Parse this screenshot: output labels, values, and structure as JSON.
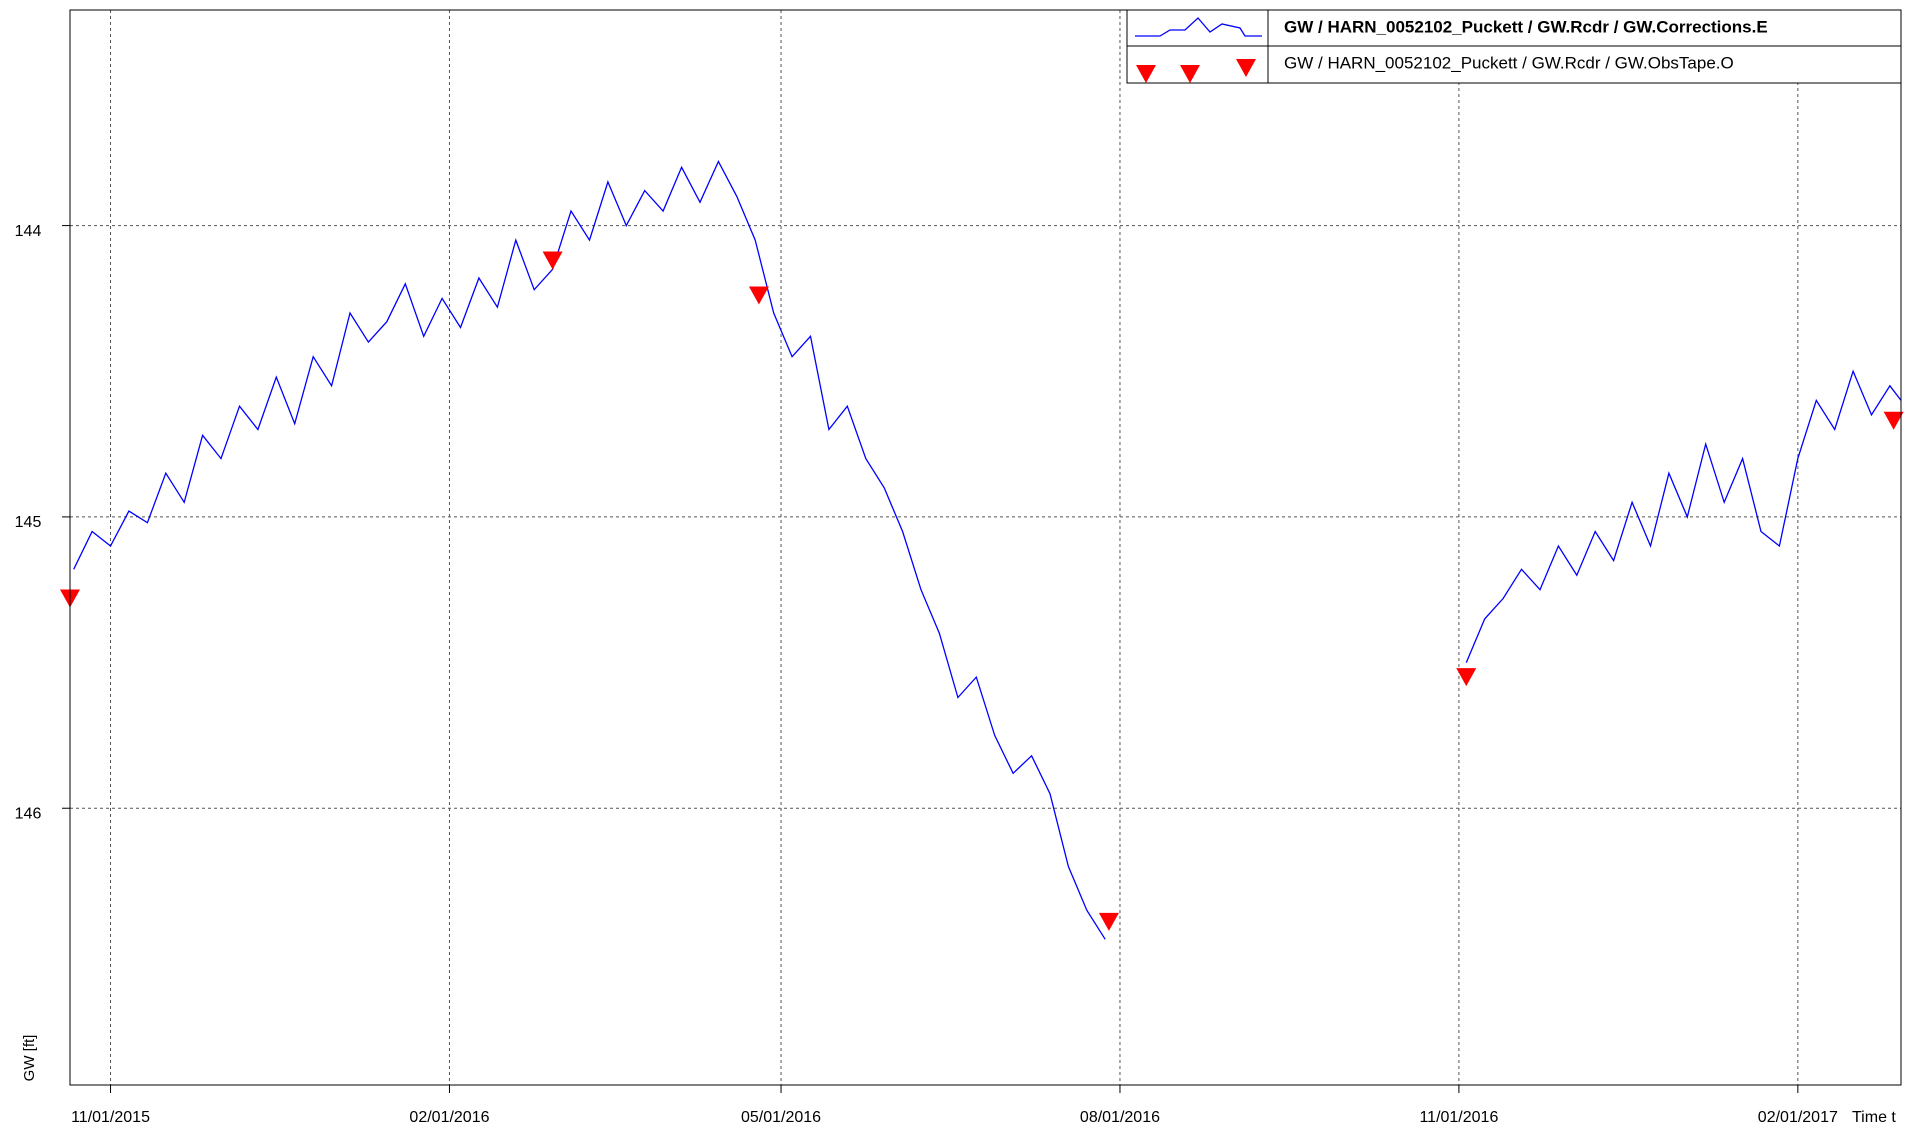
{
  "chart_data": {
    "type": "line",
    "y_label": "GW [ft]",
    "x_label": "Time t",
    "ylim": [
      143.26,
      146.95
    ],
    "y_inverted": true,
    "yticks": [
      144,
      145,
      146
    ],
    "xlim": [
      "2015-10-21",
      "2017-03-01"
    ],
    "xticks": [
      {
        "value": "2015-11-01",
        "label": "11/01/2015"
      },
      {
        "value": "2016-02-01",
        "label": "02/01/2016"
      },
      {
        "value": "2016-05-01",
        "label": "05/01/2016"
      },
      {
        "value": "2016-08-01",
        "label": "08/01/2016"
      },
      {
        "value": "2016-11-01",
        "label": "11/01/2016"
      },
      {
        "value": "2017-02-01",
        "label": "02/01/2017"
      }
    ],
    "grid": true,
    "legend": "top-right",
    "series": [
      {
        "name": "GW / HARN_0052102_Puckett / GW.Rcdr / GW.Corrections.E",
        "color": "#0000ff",
        "style": "line",
        "x": [
          "2015-10-22",
          "2015-10-27",
          "2015-11-01",
          "2015-11-06",
          "2015-11-11",
          "2015-11-16",
          "2015-11-21",
          "2015-11-26",
          "2015-12-01",
          "2015-12-06",
          "2015-12-11",
          "2015-12-16",
          "2015-12-21",
          "2015-12-26",
          "2015-12-31",
          "2016-01-05",
          "2016-01-10",
          "2016-01-15",
          "2016-01-20",
          "2016-01-25",
          "2016-01-30",
          "2016-02-04",
          "2016-02-09",
          "2016-02-14",
          "2016-02-19",
          "2016-02-24",
          "2016-02-29",
          "2016-03-05",
          "2016-03-10",
          "2016-03-15",
          "2016-03-20",
          "2016-03-25",
          "2016-03-30",
          "2016-04-04",
          "2016-04-09",
          "2016-04-14",
          "2016-04-19",
          "2016-04-24",
          "2016-04-29",
          "2016-05-04",
          "2016-05-09",
          "2016-05-14",
          "2016-05-19",
          "2016-05-24",
          "2016-05-29",
          "2016-06-03",
          "2016-06-08",
          "2016-06-13",
          "2016-06-18",
          "2016-06-23",
          "2016-06-28",
          "2016-07-03",
          "2016-07-08",
          "2016-07-13",
          "2016-07-18",
          "2016-07-23",
          "2016-07-28",
          "2016-09-15",
          "2016-11-03",
          "2016-11-08",
          "2016-11-13",
          "2016-11-18",
          "2016-11-23",
          "2016-11-28",
          "2016-12-03",
          "2016-12-08",
          "2016-12-13",
          "2016-12-18",
          "2016-12-23",
          "2016-12-28",
          "2017-01-02",
          "2017-01-07",
          "2017-01-12",
          "2017-01-17",
          "2017-01-22",
          "2017-01-27",
          "2017-02-01",
          "2017-02-06",
          "2017-02-11",
          "2017-02-16",
          "2017-02-21",
          "2017-02-26",
          "2017-03-01"
        ],
        "values": [
          145.18,
          145.05,
          145.1,
          144.98,
          145.02,
          144.85,
          144.95,
          144.72,
          144.8,
          144.62,
          144.7,
          144.52,
          144.68,
          144.45,
          144.55,
          144.3,
          144.4,
          144.33,
          144.2,
          144.38,
          144.25,
          144.35,
          144.18,
          144.28,
          144.05,
          144.22,
          144.15,
          143.95,
          144.05,
          143.85,
          144.0,
          143.88,
          143.95,
          143.8,
          143.92,
          143.78,
          143.9,
          144.05,
          144.3,
          144.45,
          144.38,
          144.7,
          144.62,
          144.8,
          144.9,
          145.05,
          145.25,
          145.4,
          145.62,
          145.55,
          145.75,
          145.88,
          145.82,
          145.95,
          146.2,
          146.35,
          146.45,
          null,
          145.5,
          145.35,
          145.28,
          145.18,
          145.25,
          145.1,
          145.2,
          145.05,
          145.15,
          144.95,
          145.1,
          144.85,
          145.0,
          144.75,
          144.95,
          144.8,
          145.05,
          145.1,
          144.8,
          144.6,
          144.7,
          144.5,
          144.65,
          144.55,
          144.6
        ]
      },
      {
        "name": "GW / HARN_0052102_Puckett / GW.Rcdr / GW.ObsTape.O",
        "color": "#ff0000",
        "style": "triangle-down",
        "x": [
          "2015-10-21",
          "2016-02-29",
          "2016-04-25",
          "2016-07-29",
          "2016-11-03",
          "2017-02-27"
        ],
        "values": [
          145.28,
          144.12,
          144.24,
          146.39,
          145.55,
          144.67
        ]
      }
    ]
  }
}
